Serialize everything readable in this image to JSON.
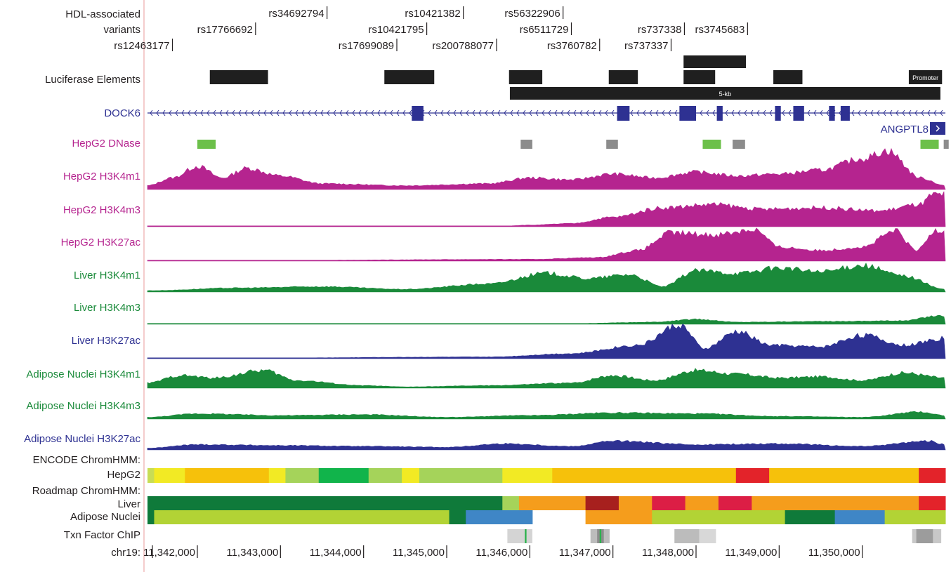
{
  "header": {
    "variants_label_line1": "HDL-associated",
    "variants_label_line2": "variants",
    "luciferase_label": "Luciferase Elements",
    "promoter_label": "Promoter",
    "fivekb_label": "5-kb"
  },
  "variants": [
    {
      "id": "rs12463177",
      "row": 3,
      "pos": 11341700
    },
    {
      "id": "rs17766692",
      "row": 2,
      "pos": 11342700
    },
    {
      "id": "rs34692794",
      "row": 1,
      "pos": 11343560
    },
    {
      "id": "rs17699089",
      "row": 3,
      "pos": 11344400
    },
    {
      "id": "rs10421795",
      "row": 2,
      "pos": 11344760
    },
    {
      "id": "rs10421382",
      "row": 1,
      "pos": 11345200
    },
    {
      "id": "rs200788077",
      "row": 3,
      "pos": 11345600
    },
    {
      "id": "rs56322906",
      "row": 1,
      "pos": 11346400
    },
    {
      "id": "rs6511729",
      "row": 2,
      "pos": 11346500
    },
    {
      "id": "rs3760782",
      "row": 3,
      "pos": 11346840
    },
    {
      "id": "rs737338",
      "row": 2,
      "pos": 11347860
    },
    {
      "id": "rs3745683",
      "row": 2,
      "pos": 11348620
    },
    {
      "id": "rs737337",
      "row": 3,
      "pos": 11347700
    }
  ],
  "luciferase_elements": [
    {
      "start": 11342150,
      "end": 11342850,
      "row": 2
    },
    {
      "start": 11344250,
      "end": 11344850,
      "row": 2
    },
    {
      "start": 11345750,
      "end": 11346150,
      "row": 2
    },
    {
      "start": 11346950,
      "end": 11347300,
      "row": 2
    },
    {
      "start": 11347850,
      "end": 11348230,
      "row": 2
    },
    {
      "start": 11347850,
      "end": 11348600,
      "row": 1
    },
    {
      "start": 11348930,
      "end": 11349280,
      "row": 2
    },
    {
      "start": 11345760,
      "end": 11350940,
      "row": 3,
      "label_key": "fivekb_label"
    },
    {
      "start": 11350560,
      "end": 11350960,
      "row": 2,
      "label_key": "promoter_label"
    }
  ],
  "genes": {
    "dock6_label": "DOCK6",
    "angptl8_label": "ANGPTL8",
    "dock6_color": "#2e3192",
    "dock6_exons": [
      [
        11344580,
        11344720
      ],
      [
        11347050,
        11347200
      ],
      [
        11347800,
        11348000
      ],
      [
        11348250,
        11348320
      ],
      [
        11348950,
        11349020
      ],
      [
        11349170,
        11349300
      ],
      [
        11349600,
        11349670
      ],
      [
        11349740,
        11349850
      ]
    ]
  },
  "tracks": [
    {
      "key": "hepg2_dnase",
      "label": "HepG2 DNase",
      "color": "#b5248f"
    },
    {
      "key": "hepg2_h3k4m1",
      "label": "HepG2 H3K4m1",
      "color": "#b5248f"
    },
    {
      "key": "hepg2_h3k4m3",
      "label": "HepG2 H3K4m3",
      "color": "#b5248f"
    },
    {
      "key": "hepg2_h3k27ac",
      "label": "HepG2 H3K27ac",
      "color": "#b5248f"
    },
    {
      "key": "liver_h3k4m1",
      "label": "Liver H3K4m1",
      "color": "#1a8a3a"
    },
    {
      "key": "liver_h3k4m3",
      "label": "Liver H3K4m3",
      "color": "#1a8a3a"
    },
    {
      "key": "liver_h3k27ac",
      "label": "Liver H3K27ac",
      "color": "#2e3192"
    },
    {
      "key": "adipose_h3k4m1",
      "label": "Adipose Nuclei H3K4m1",
      "color": "#1a8a3a"
    },
    {
      "key": "adipose_h3k4m3",
      "label": "Adipose Nuclei H3K4m3",
      "color": "#1a8a3a"
    },
    {
      "key": "adipose_h3k27ac",
      "label": "Adipose Nuclei H3K27ac",
      "color": "#2e3192"
    }
  ],
  "dnase_peaks": [
    {
      "start": 11342000,
      "end": 11342220,
      "color": "#6cc04a"
    },
    {
      "start": 11345890,
      "end": 11346030,
      "color": "#8c8c8c"
    },
    {
      "start": 11346920,
      "end": 11347060,
      "color": "#8c8c8c"
    },
    {
      "start": 11348080,
      "end": 11348300,
      "color": "#6cc04a"
    },
    {
      "start": 11348440,
      "end": 11348590,
      "color": "#8c8c8c"
    },
    {
      "start": 11350700,
      "end": 11350920,
      "color": "#6cc04a"
    },
    {
      "start": 11350980,
      "end": 11351040,
      "color": "#8c8c8c"
    }
  ],
  "chromhmm": {
    "encode_label": "ENCODE ChromHMM:",
    "hepg2_label": "HepG2",
    "roadmap_label": "Roadmap ChromHMM:",
    "liver_label": "Liver",
    "adipose_label": "Adipose Nuclei",
    "hepg2": [
      [
        11341400,
        11341480,
        "#c8dd55"
      ],
      [
        11341480,
        11341850,
        "#f2ea24"
      ],
      [
        11341850,
        11342860,
        "#f6c10b"
      ],
      [
        11342860,
        11343060,
        "#f2ea24"
      ],
      [
        11343060,
        11343460,
        "#a5d35a"
      ],
      [
        11343460,
        11344060,
        "#11b44b"
      ],
      [
        11344060,
        11344460,
        "#a5d35a"
      ],
      [
        11344460,
        11344670,
        "#f2ea24"
      ],
      [
        11344670,
        11345670,
        "#a5d35a"
      ],
      [
        11345670,
        11346270,
        "#f2ea24"
      ],
      [
        11346270,
        11348480,
        "#f6c10b"
      ],
      [
        11348480,
        11348880,
        "#e3232a"
      ],
      [
        11348880,
        11350680,
        "#f6c10b"
      ],
      [
        11350680,
        11351000,
        "#e3232a"
      ]
    ],
    "liver": [
      [
        11341400,
        11345670,
        "#0f7a3a"
      ],
      [
        11345670,
        11345870,
        "#a5d35a"
      ],
      [
        11345870,
        11346670,
        "#f59d1c"
      ],
      [
        11346670,
        11347070,
        "#a7201e"
      ],
      [
        11347070,
        11347470,
        "#f59d1c"
      ],
      [
        11347470,
        11347870,
        "#dc1e45"
      ],
      [
        11347870,
        11348270,
        "#f59d1c"
      ],
      [
        11348270,
        11348670,
        "#dc1e45"
      ],
      [
        11348670,
        11350680,
        "#f59d1c"
      ],
      [
        11350680,
        11351000,
        "#e3232a"
      ]
    ],
    "adipose": [
      [
        11341400,
        11341480,
        "#0f7a3a"
      ],
      [
        11341480,
        11345030,
        "#b2d335"
      ],
      [
        11345030,
        11345230,
        "#0f7a3a"
      ],
      [
        11345230,
        11346030,
        "#3f86c6"
      ],
      [
        11346670,
        11347470,
        "#f59d1c"
      ],
      [
        11347470,
        11349070,
        "#b2d335"
      ],
      [
        11349070,
        11349670,
        "#0f7a3a"
      ],
      [
        11349670,
        11350270,
        "#3f86c6"
      ],
      [
        11350270,
        11351000,
        "#b2d335"
      ]
    ]
  },
  "txn": {
    "label": "Txn Factor ChIP",
    "blocks": [
      [
        11345730,
        11346030,
        "#d4d4d4"
      ],
      [
        11345940,
        11345960,
        "#2bb24c"
      ],
      [
        11346730,
        11346960,
        "#bcbcbc"
      ],
      [
        11346810,
        11346890,
        "#8c8c8c"
      ],
      [
        11346840,
        11346860,
        "#2bb24c"
      ],
      [
        11347740,
        11348040,
        "#bcbcbc"
      ],
      [
        11348040,
        11348240,
        "#d8d8d8"
      ],
      [
        11350600,
        11350950,
        "#c8c8c8"
      ],
      [
        11350650,
        11350850,
        "#9c9c9c"
      ]
    ]
  },
  "axis": {
    "chrom_label": "chr19:",
    "start": 11341400,
    "end": 11351000,
    "ticks": [
      {
        "pos": 11342000,
        "label": "11,342,000"
      },
      {
        "pos": 11343000,
        "label": "11,343,000"
      },
      {
        "pos": 11344000,
        "label": "11,344,000"
      },
      {
        "pos": 11345000,
        "label": "11,345,000"
      },
      {
        "pos": 11346000,
        "label": "11,346,000"
      },
      {
        "pos": 11347000,
        "label": "11,347,000"
      },
      {
        "pos": 11348000,
        "label": "11,348,000"
      },
      {
        "pos": 11349000,
        "label": "11,349,000"
      },
      {
        "pos": 11350000,
        "label": "11,350,000"
      }
    ]
  },
  "signals": {
    "hepg2_h3k4m1": [
      [
        11341400,
        0.1
      ],
      [
        11341700,
        0.3
      ],
      [
        11342000,
        0.6
      ],
      [
        11342300,
        0.3
      ],
      [
        11342600,
        0.55
      ],
      [
        11343000,
        0.35
      ],
      [
        11343500,
        0.15
      ],
      [
        11344500,
        0.1
      ],
      [
        11345500,
        0.15
      ],
      [
        11346000,
        0.3
      ],
      [
        11346500,
        0.25
      ],
      [
        11347000,
        0.4
      ],
      [
        11347500,
        0.3
      ],
      [
        11348000,
        0.45
      ],
      [
        11348500,
        0.35
      ],
      [
        11349000,
        0.4
      ],
      [
        11349500,
        0.5
      ],
      [
        11350000,
        0.8
      ],
      [
        11350300,
        1.0
      ],
      [
        11350700,
        0.3
      ],
      [
        11351000,
        0.1
      ]
    ],
    "hepg2_h3k4m3": [
      [
        11341400,
        0
      ],
      [
        11345500,
        0
      ],
      [
        11346000,
        0.05
      ],
      [
        11346500,
        0.1
      ],
      [
        11347000,
        0.3
      ],
      [
        11347600,
        0.6
      ],
      [
        11348200,
        0.7
      ],
      [
        11348800,
        0.55
      ],
      [
        11349500,
        0.6
      ],
      [
        11350200,
        0.5
      ],
      [
        11350700,
        0.7
      ],
      [
        11350850,
        1.0
      ],
      [
        11351000,
        1.0
      ]
    ],
    "hepg2_h3k27ac": [
      [
        11341400,
        0
      ],
      [
        11346000,
        0.05
      ],
      [
        11346800,
        0.1
      ],
      [
        11347300,
        0.3
      ],
      [
        11347700,
        0.8
      ],
      [
        11348200,
        0.75
      ],
      [
        11348700,
        0.9
      ],
      [
        11349000,
        0.4
      ],
      [
        11349500,
        0.3
      ],
      [
        11350000,
        0.4
      ],
      [
        11350400,
        0.85
      ],
      [
        11350650,
        0.3
      ],
      [
        11350900,
        0.9
      ],
      [
        11351000,
        0.9
      ]
    ],
    "liver_h3k4m1": [
      [
        11341400,
        0.05
      ],
      [
        11342500,
        0.15
      ],
      [
        11343500,
        0.2
      ],
      [
        11344500,
        0.1
      ],
      [
        11345500,
        0.3
      ],
      [
        11346200,
        0.7
      ],
      [
        11346700,
        0.5
      ],
      [
        11347200,
        0.65
      ],
      [
        11347600,
        0.2
      ],
      [
        11348000,
        0.8
      ],
      [
        11348500,
        0.7
      ],
      [
        11349000,
        0.9
      ],
      [
        11349500,
        0.75
      ],
      [
        11350000,
        1.0
      ],
      [
        11350500,
        0.6
      ],
      [
        11351000,
        0.1
      ]
    ],
    "liver_h3k4m3": [
      [
        11341400,
        0
      ],
      [
        11346500,
        0.05
      ],
      [
        11347500,
        0.15
      ],
      [
        11348000,
        0.35
      ],
      [
        11348500,
        0.15
      ],
      [
        11349500,
        0.2
      ],
      [
        11350500,
        0.25
      ],
      [
        11350900,
        0.6
      ],
      [
        11351000,
        0.6
      ]
    ],
    "liver_h3k27ac": [
      [
        11341400,
        0
      ],
      [
        11345500,
        0.05
      ],
      [
        11346500,
        0.15
      ],
      [
        11347300,
        0.4
      ],
      [
        11347800,
        1.0
      ],
      [
        11348100,
        0.3
      ],
      [
        11348500,
        0.8
      ],
      [
        11348900,
        0.4
      ],
      [
        11349500,
        0.35
      ],
      [
        11350000,
        0.7
      ],
      [
        11350500,
        0.4
      ],
      [
        11351000,
        0.6
      ]
    ],
    "adipose_h3k4m1": [
      [
        11341400,
        0.2
      ],
      [
        11341800,
        0.5
      ],
      [
        11342200,
        0.4
      ],
      [
        11342800,
        0.7
      ],
      [
        11343200,
        0.3
      ],
      [
        11344000,
        0.1
      ],
      [
        11344500,
        0.05
      ],
      [
        11345500,
        0.1
      ],
      [
        11346500,
        0.2
      ],
      [
        11347000,
        0.5
      ],
      [
        11347500,
        0.3
      ],
      [
        11348000,
        0.7
      ],
      [
        11348500,
        0.55
      ],
      [
        11349000,
        0.4
      ],
      [
        11349500,
        0.45
      ],
      [
        11350000,
        0.3
      ],
      [
        11350500,
        0.6
      ],
      [
        11351000,
        0.4
      ]
    ],
    "adipose_h3k4m3": [
      [
        11341400,
        0.1
      ],
      [
        11342000,
        0.3
      ],
      [
        11343000,
        0.2
      ],
      [
        11344000,
        0.25
      ],
      [
        11345000,
        0.1
      ],
      [
        11346000,
        0.2
      ],
      [
        11347000,
        0.35
      ],
      [
        11348000,
        0.3
      ],
      [
        11349000,
        0.15
      ],
      [
        11350000,
        0.1
      ],
      [
        11350700,
        0.4
      ],
      [
        11351000,
        0.2
      ]
    ],
    "adipose_h3k27ac": [
      [
        11341400,
        0.1
      ],
      [
        11342000,
        0.3
      ],
      [
        11343000,
        0.25
      ],
      [
        11344000,
        0.2
      ],
      [
        11345000,
        0.15
      ],
      [
        11345700,
        0.35
      ],
      [
        11346500,
        0.2
      ],
      [
        11347000,
        0.5
      ],
      [
        11348000,
        0.3
      ],
      [
        11349000,
        0.35
      ],
      [
        11350000,
        0.2
      ],
      [
        11350800,
        0.5
      ],
      [
        11351000,
        0.3
      ]
    ]
  }
}
